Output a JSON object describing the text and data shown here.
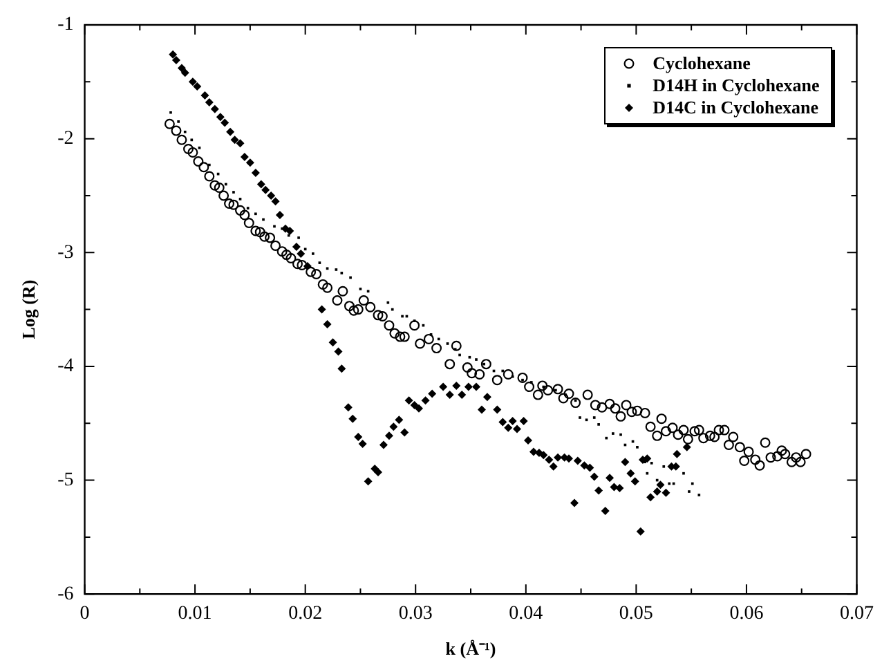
{
  "chart_data": {
    "type": "scatter",
    "xlabel": "k (Å⁻¹)",
    "ylabel": "Log (R)",
    "xlim": [
      0,
      0.07
    ],
    "ylim": [
      -6,
      -1
    ],
    "xticks": [
      0,
      {
        "value": 0.005,
        "label": null
      },
      {
        "value": 0.01,
        "label": "0.01"
      },
      {
        "value": 0.015,
        "label": null
      },
      {
        "value": 0.02,
        "label": "0.02"
      },
      {
        "value": 0.025,
        "label": null
      },
      {
        "value": 0.03,
        "label": "0.03"
      },
      {
        "value": 0.035,
        "label": null
      },
      {
        "value": 0.04,
        "label": "0.04"
      },
      {
        "value": 0.045,
        "label": null
      },
      {
        "value": 0.05,
        "label": "0.05"
      },
      {
        "value": 0.055,
        "label": null
      },
      {
        "value": 0.06,
        "label": "0.06"
      },
      {
        "value": 0.065,
        "label": null
      },
      {
        "value": 0.07,
        "label": "0.07"
      }
    ],
    "yticks": [
      -6,
      {
        "value": -5.5,
        "label": null
      },
      -5,
      {
        "value": -4.5,
        "label": null
      },
      -4,
      {
        "value": -3.5,
        "label": null
      },
      -3,
      {
        "value": -2.5,
        "label": null
      },
      -2,
      {
        "value": -1.5,
        "label": null
      },
      -1
    ],
    "grid": false,
    "legend": "top right",
    "series": [
      {
        "name": "Cyclohexane",
        "color": "#000000",
        "marker": "circle",
        "x": [
          0.0077,
          0.0083,
          0.0088,
          0.0094,
          0.0098,
          0.0103,
          0.0108,
          0.0113,
          0.0118,
          0.0122,
          0.0126,
          0.0131,
          0.0135,
          0.0141,
          0.0145,
          0.0149,
          0.0155,
          0.0159,
          0.0163,
          0.0168,
          0.0173,
          0.0179,
          0.0183,
          0.0187,
          0.0193,
          0.0197,
          0.0205,
          0.021,
          0.0216,
          0.022,
          0.0229,
          0.0234,
          0.024,
          0.0244,
          0.0248,
          0.0253,
          0.0259,
          0.0266,
          0.027,
          0.0276,
          0.0281,
          0.0286,
          0.029,
          0.0299,
          0.0304,
          0.0312,
          0.0319,
          0.0331,
          0.0337,
          0.0347,
          0.0351,
          0.0358,
          0.0364,
          0.0374,
          0.0384,
          0.0397,
          0.0403,
          0.0411,
          0.0415,
          0.042,
          0.0429,
          0.0434,
          0.0439,
          0.0445,
          0.0456,
          0.0463,
          0.0469,
          0.0476,
          0.0481,
          0.0486,
          0.0491,
          0.0496,
          0.0501,
          0.0508,
          0.0513,
          0.0519,
          0.0523,
          0.0527,
          0.0533,
          0.0538,
          0.0543,
          0.0547,
          0.0553,
          0.0557,
          0.0561,
          0.0567,
          0.0571,
          0.0575,
          0.058,
          0.0584,
          0.0588,
          0.0594,
          0.0598,
          0.0602,
          0.0608,
          0.0612,
          0.0617,
          0.0622,
          0.0628,
          0.0632,
          0.0635,
          0.0641,
          0.0645,
          0.0649,
          0.0654
        ],
        "values": [
          -1.87,
          -1.93,
          -2.01,
          -2.09,
          -2.12,
          -2.2,
          -2.25,
          -2.33,
          -2.41,
          -2.43,
          -2.5,
          -2.57,
          -2.58,
          -2.63,
          -2.67,
          -2.74,
          -2.81,
          -2.82,
          -2.86,
          -2.87,
          -2.94,
          -2.99,
          -3.02,
          -3.05,
          -3.1,
          -3.11,
          -3.17,
          -3.19,
          -3.28,
          -3.31,
          -3.42,
          -3.34,
          -3.47,
          -3.51,
          -3.5,
          -3.42,
          -3.48,
          -3.55,
          -3.56,
          -3.64,
          -3.71,
          -3.74,
          -3.74,
          -3.64,
          -3.8,
          -3.76,
          -3.84,
          -3.98,
          -3.82,
          -4.01,
          -4.06,
          -4.07,
          -3.98,
          -4.12,
          -4.07,
          -4.1,
          -4.18,
          -4.25,
          -4.17,
          -4.21,
          -4.2,
          -4.28,
          -4.24,
          -4.32,
          -4.25,
          -4.34,
          -4.36,
          -4.33,
          -4.37,
          -4.44,
          -4.34,
          -4.4,
          -4.39,
          -4.41,
          -4.53,
          -4.61,
          -4.46,
          -4.57,
          -4.54,
          -4.6,
          -4.56,
          -4.64,
          -4.57,
          -4.56,
          -4.63,
          -4.61,
          -4.62,
          -4.56,
          -4.56,
          -4.69,
          -4.62,
          -4.71,
          -4.83,
          -4.75,
          -4.82,
          -4.87,
          -4.67,
          -4.8,
          -4.79,
          -4.74,
          -4.77,
          -4.84,
          -4.8,
          -4.84,
          -4.77
        ]
      },
      {
        "name": "D14H in Cyclohexane",
        "color": "#000000",
        "marker": "square",
        "x": [
          0.0078,
          0.0085,
          0.0091,
          0.0097,
          0.0104,
          0.0113,
          0.0121,
          0.0128,
          0.0135,
          0.0141,
          0.0148,
          0.0155,
          0.0162,
          0.0172,
          0.0179,
          0.0185,
          0.0194,
          0.02,
          0.0207,
          0.0213,
          0.022,
          0.0228,
          0.0233,
          0.0241,
          0.025,
          0.0257,
          0.0275,
          0.0279,
          0.0288,
          0.0292,
          0.0299,
          0.0307,
          0.0314,
          0.0321,
          0.0329,
          0.0336,
          0.034,
          0.0349,
          0.0355,
          0.0362,
          0.0371,
          0.0379,
          0.0388,
          0.0397,
          0.0405,
          0.0416,
          0.0427,
          0.0436,
          0.0445,
          0.0449,
          0.0455,
          0.0462,
          0.0466,
          0.0473,
          0.0479,
          0.0486,
          0.049,
          0.0497,
          0.0501,
          0.0508,
          0.051,
          0.0514,
          0.0519,
          0.0525,
          0.053,
          0.0534,
          0.0543,
          0.0548,
          0.0551,
          0.0557
        ],
        "values": [
          -1.77,
          -1.85,
          -1.94,
          -2.01,
          -2.08,
          -2.23,
          -2.31,
          -2.4,
          -2.47,
          -2.53,
          -2.61,
          -2.66,
          -2.71,
          -2.77,
          -2.79,
          -2.85,
          -2.87,
          -2.97,
          -3.01,
          -3.09,
          -3.14,
          -3.15,
          -3.18,
          -3.22,
          -3.32,
          -3.34,
          -3.44,
          -3.5,
          -3.56,
          -3.56,
          -3.6,
          -3.64,
          -3.72,
          -3.76,
          -3.8,
          -3.85,
          -3.9,
          -3.92,
          -3.94,
          -3.98,
          -4.04,
          -4.04,
          -4.09,
          -4.12,
          -4.14,
          -4.18,
          -4.21,
          -4.25,
          -4.3,
          -4.45,
          -4.47,
          -4.45,
          -4.51,
          -4.63,
          -4.59,
          -4.6,
          -4.69,
          -4.66,
          -4.71,
          -4.84,
          -4.94,
          -4.85,
          -5,
          -4.88,
          -5.03,
          -5.03,
          -4.94,
          -5.1,
          -5.03,
          -5.13
        ]
      },
      {
        "name": "D14C in Cyclohexane",
        "color": "#000000",
        "marker": "diamond",
        "x": [
          0.008,
          0.0083,
          0.0088,
          0.0091,
          0.0098,
          0.0102,
          0.0109,
          0.0113,
          0.0118,
          0.0123,
          0.0127,
          0.0132,
          0.0136,
          0.0141,
          0.0145,
          0.015,
          0.0155,
          0.016,
          0.0164,
          0.0169,
          0.0173,
          0.0177,
          0.0182,
          0.0186,
          0.0192,
          0.0196,
          0.0202,
          0.0215,
          0.022,
          0.0225,
          0.023,
          0.0233,
          0.0239,
          0.0243,
          0.0248,
          0.0252,
          0.0257,
          0.0263,
          0.0266,
          0.0271,
          0.0276,
          0.028,
          0.0285,
          0.029,
          0.0294,
          0.0299,
          0.0303,
          0.0309,
          0.0315,
          0.0325,
          0.0331,
          0.0337,
          0.0342,
          0.0348,
          0.0355,
          0.036,
          0.0365,
          0.0374,
          0.0379,
          0.0384,
          0.0388,
          0.0392,
          0.0398,
          0.0402,
          0.0407,
          0.0412,
          0.0416,
          0.0421,
          0.0425,
          0.0429,
          0.0435,
          0.0439,
          0.0444,
          0.0447,
          0.0453,
          0.0458,
          0.0462,
          0.0466,
          0.0472,
          0.0476,
          0.048,
          0.0485,
          0.049,
          0.0495,
          0.0499,
          0.0504,
          0.0506,
          0.051,
          0.0513,
          0.0519,
          0.0522,
          0.0527,
          0.0532,
          0.0536,
          0.0537,
          0.0546
        ],
        "values": [
          -1.26,
          -1.31,
          -1.38,
          -1.42,
          -1.5,
          -1.54,
          -1.62,
          -1.68,
          -1.74,
          -1.81,
          -1.86,
          -1.94,
          -2.01,
          -2.04,
          -2.16,
          -2.21,
          -2.3,
          -2.4,
          -2.45,
          -2.5,
          -2.55,
          -2.67,
          -2.79,
          -2.81,
          -2.95,
          -3.01,
          -3.12,
          -3.5,
          -3.63,
          -3.79,
          -3.87,
          -4.02,
          -4.36,
          -4.46,
          -4.62,
          -4.68,
          -5.01,
          -4.9,
          -4.93,
          -4.69,
          -4.61,
          -4.53,
          -4.47,
          -4.58,
          -4.3,
          -4.34,
          -4.37,
          -4.3,
          -4.24,
          -4.18,
          -4.25,
          -4.17,
          -4.25,
          -4.18,
          -4.18,
          -4.38,
          -4.27,
          -4.38,
          -4.49,
          -4.54,
          -4.48,
          -4.55,
          -4.48,
          -4.65,
          -4.75,
          -4.76,
          -4.78,
          -4.82,
          -4.88,
          -4.8,
          -4.8,
          -4.81,
          -5.2,
          -4.83,
          -4.87,
          -4.89,
          -4.97,
          -5.09,
          -5.27,
          -4.98,
          -5.06,
          -5.07,
          -4.84,
          -4.94,
          -5.01,
          -5.45,
          -4.82,
          -4.81,
          -5.15,
          -5.1,
          -5.04,
          -5.11,
          -4.88,
          -4.88,
          -4.77,
          -4.71
        ]
      }
    ]
  }
}
